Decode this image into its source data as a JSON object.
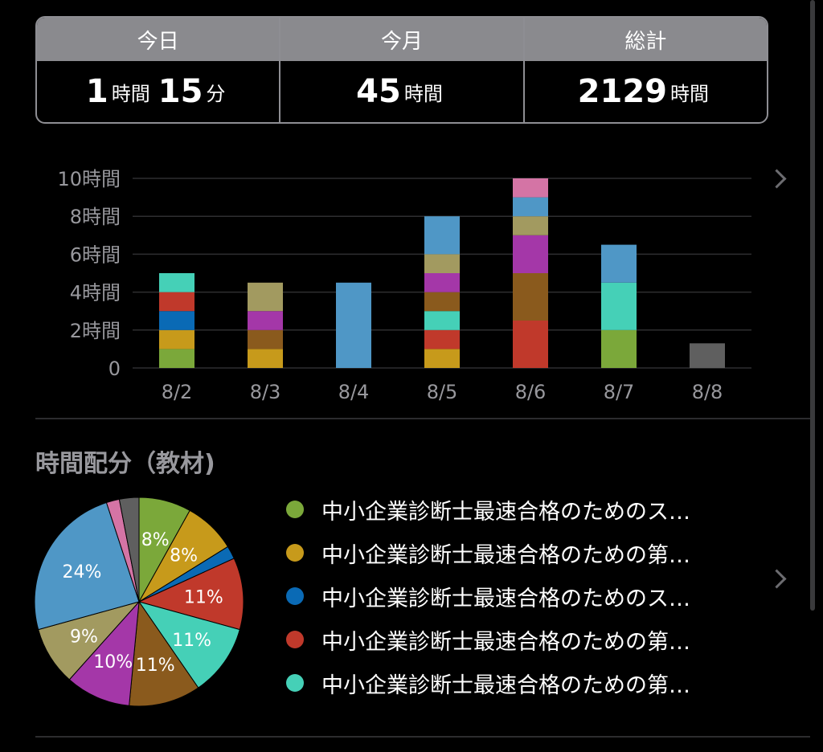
{
  "summary": {
    "today": {
      "label": "今日",
      "hours": "1",
      "hours_unit": "時間",
      "minutes": "15",
      "minutes_unit": "分"
    },
    "month": {
      "label": "今月",
      "value": "45",
      "unit": "時間"
    },
    "total": {
      "label": "総計",
      "value": "2129",
      "unit": "時間"
    }
  },
  "colors": {
    "green": "#7ba83a",
    "gold": "#c79a1b",
    "blue": "#0a6ab5",
    "red": "#c0392b",
    "teal": "#45d0b7",
    "brown": "#8a5a1d",
    "purple": "#a437a8",
    "olive": "#a29a60",
    "steel": "#4f97c6",
    "pink": "#d474a5",
    "gray": "#5f5f5f"
  },
  "chart_data": [
    {
      "type": "bar",
      "stacked": true,
      "categories": [
        "8/2",
        "8/3",
        "8/4",
        "8/5",
        "8/6",
        "8/7",
        "8/8"
      ],
      "y_ticks": [
        "0",
        "2時間",
        "4時間",
        "6時間",
        "8時間",
        "10時間"
      ],
      "ylim": [
        0,
        10
      ],
      "grid": true,
      "series": [
        {
          "color_key": "green",
          "values": [
            1,
            0,
            0,
            0,
            0,
            2,
            0
          ]
        },
        {
          "color_key": "gold",
          "values": [
            1,
            1,
            0,
            1,
            0,
            0,
            0
          ]
        },
        {
          "color_key": "blue",
          "values": [
            1,
            0,
            0,
            0,
            0,
            0,
            0
          ]
        },
        {
          "color_key": "red",
          "values": [
            1,
            0,
            0,
            1,
            2.5,
            0,
            0
          ]
        },
        {
          "color_key": "teal",
          "values": [
            1,
            0,
            0,
            1,
            0,
            2.5,
            0
          ]
        },
        {
          "color_key": "brown",
          "values": [
            0,
            1,
            0,
            1,
            2.5,
            0,
            0
          ]
        },
        {
          "color_key": "purple",
          "values": [
            0,
            1,
            0,
            1,
            2,
            0,
            0
          ]
        },
        {
          "color_key": "olive",
          "values": [
            0,
            1.5,
            0,
            1,
            1,
            0,
            0
          ]
        },
        {
          "color_key": "steel",
          "values": [
            0,
            0,
            4.5,
            2,
            1,
            2,
            0
          ]
        },
        {
          "color_key": "pink",
          "values": [
            0,
            0,
            0,
            0,
            1,
            0,
            0
          ]
        },
        {
          "color_key": "gray",
          "values": [
            0,
            0,
            0,
            0,
            0,
            0,
            1.3
          ]
        }
      ]
    },
    {
      "type": "pie",
      "title": "時間配分（教材)",
      "slices": [
        {
          "color_key": "green",
          "value": 8,
          "label": "8%"
        },
        {
          "color_key": "gold",
          "value": 8,
          "label": "8%"
        },
        {
          "color_key": "blue",
          "value": 2,
          "label": ""
        },
        {
          "color_key": "red",
          "value": 11,
          "label": "11%"
        },
        {
          "color_key": "teal",
          "value": 11,
          "label": "11%"
        },
        {
          "color_key": "brown",
          "value": 11,
          "label": "11%"
        },
        {
          "color_key": "purple",
          "value": 10,
          "label": "10%"
        },
        {
          "color_key": "olive",
          "value": 9,
          "label": "9%"
        },
        {
          "color_key": "steel",
          "value": 24,
          "label": "24%"
        },
        {
          "color_key": "pink",
          "value": 2,
          "label": ""
        },
        {
          "color_key": "gray",
          "value": 3,
          "label": ""
        }
      ],
      "legend": [
        {
          "color_key": "green",
          "label": "中小企業診断士最速合格のためのス…"
        },
        {
          "color_key": "gold",
          "label": "中小企業診断士最速合格のための第…"
        },
        {
          "color_key": "blue",
          "label": "中小企業診断士最速合格のためのス…"
        },
        {
          "color_key": "red",
          "label": "中小企業診断士最速合格のための第…"
        },
        {
          "color_key": "teal",
          "label": "中小企業診断士最速合格のための第…"
        }
      ]
    }
  ]
}
